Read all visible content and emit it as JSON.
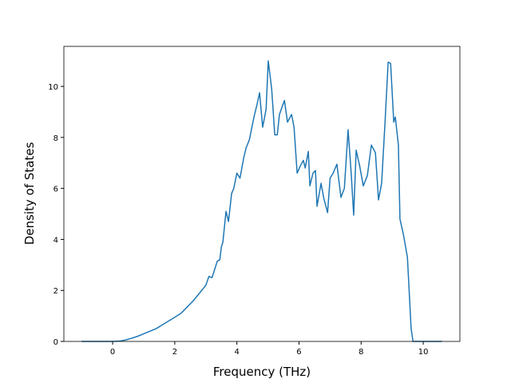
{
  "chart_data": {
    "type": "line",
    "x_label": "Frequency (THz)",
    "y_label": "Density of States",
    "x": [
      -1.0,
      -0.5,
      0,
      0.2,
      0.4,
      0.6,
      0.8,
      1.0,
      1.2,
      1.4,
      1.6,
      1.8,
      2.0,
      2.2,
      2.4,
      2.6,
      2.8,
      3.0,
      3.1,
      3.2,
      3.37,
      3.45,
      3.5,
      3.55,
      3.65,
      3.73,
      3.83,
      3.9,
      4.0,
      4.1,
      4.22,
      4.3,
      4.4,
      4.55,
      4.65,
      4.73,
      4.83,
      4.94,
      5.01,
      5.12,
      5.22,
      5.3,
      5.37,
      5.53,
      5.63,
      5.76,
      5.84,
      5.94,
      6.05,
      6.14,
      6.2,
      6.3,
      6.35,
      6.45,
      6.53,
      6.58,
      6.71,
      6.8,
      6.92,
      7.0,
      7.1,
      7.22,
      7.35,
      7.46,
      7.58,
      7.68,
      7.76,
      7.84,
      7.95,
      8.07,
      8.2,
      8.33,
      8.46,
      8.56,
      8.66,
      8.77,
      8.87,
      8.95,
      9.05,
      9.1,
      9.2,
      9.25,
      9.36,
      9.49,
      9.61,
      9.67,
      10.0,
      10.6
    ],
    "series": [
      {
        "color": "#1f77b4",
        "values": [
          0,
          0,
          0,
          0.01,
          0.05,
          0.12,
          0.2,
          0.3,
          0.4,
          0.5,
          0.65,
          0.8,
          0.95,
          1.1,
          1.35,
          1.6,
          1.9,
          2.2,
          2.55,
          2.5,
          3.15,
          3.2,
          3.7,
          3.9,
          5.1,
          4.7,
          5.8,
          6.0,
          6.6,
          6.4,
          7.2,
          7.6,
          7.9,
          8.8,
          9.3,
          9.75,
          8.4,
          9.1,
          11.0,
          9.9,
          8.1,
          8.1,
          8.9,
          9.45,
          8.6,
          8.9,
          8.4,
          6.6,
          6.9,
          7.1,
          6.8,
          7.45,
          6.1,
          6.6,
          6.7,
          5.3,
          6.2,
          5.6,
          5.05,
          6.4,
          6.6,
          6.95,
          5.65,
          6.0,
          8.3,
          6.6,
          4.95,
          7.5,
          6.9,
          6.1,
          6.5,
          7.7,
          7.4,
          5.55,
          6.2,
          8.6,
          10.95,
          10.9,
          8.6,
          8.8,
          7.7,
          4.8,
          4.2,
          3.3,
          0.5,
          0,
          0,
          0
        ]
      }
    ],
    "xlim": [
      -1.57,
      11.18
    ],
    "ylim": [
      0,
      11.57
    ],
    "xticks": [
      0,
      2,
      4,
      6,
      8,
      10
    ],
    "yticks": [
      0,
      2,
      4,
      6,
      8,
      10
    ],
    "grid": false
  }
}
